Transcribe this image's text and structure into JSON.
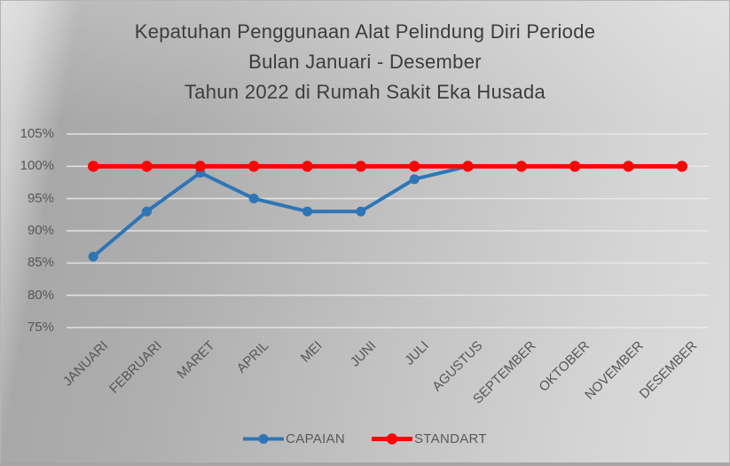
{
  "title": {
    "lines": [
      "Kepatuhan Penggunaan Alat Pelindung Diri Periode",
      "Bulan Januari - Desember",
      "Tahun 2022 di Rumah Sakit Eka Husada"
    ]
  },
  "chart_data": {
    "type": "line",
    "title": "Kepatuhan Penggunaan Alat Pelindung Diri Periode Bulan Januari - Desember Tahun 2022 di Rumah Sakit Eka Husada",
    "categories": [
      "JANUARI",
      "FEBRUARI",
      "MARET",
      "APRIL",
      "MEI",
      "JUNI",
      "JULI",
      "AGUSTUS",
      "SEPTEMBER",
      "OKTOBER",
      "NOVEMBER",
      "DESEMBER"
    ],
    "series": [
      {
        "name": "CAPAIAN",
        "color": "#2E75B6",
        "values": [
          86,
          93,
          99,
          95,
          93,
          93,
          98,
          100,
          null,
          null,
          null,
          null
        ]
      },
      {
        "name": "STANDART",
        "color": "#FB0606",
        "values": [
          100,
          100,
          100,
          100,
          100,
          100,
          100,
          100,
          100,
          100,
          100,
          100
        ]
      }
    ],
    "xlabel": "",
    "ylabel": "",
    "ylim": [
      75,
      105
    ],
    "ytick_step": 5,
    "ytick_suffix": "%",
    "grid": true,
    "legend_position": "bottom"
  },
  "colors": {
    "grid": "#ececec",
    "tick_text": "#575757",
    "title_text": "#3d3d3d"
  }
}
